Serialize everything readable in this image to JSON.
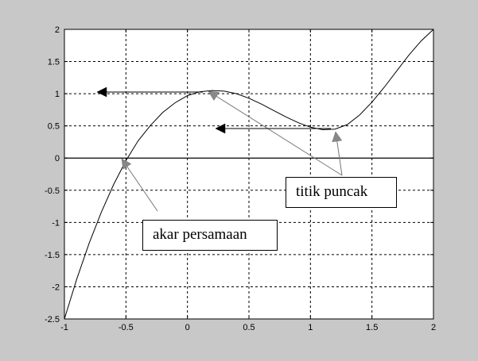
{
  "chart_data": {
    "type": "line",
    "title": "",
    "xlabel": "",
    "ylabel": "",
    "xlim": [
      -1,
      2
    ],
    "ylim": [
      -2.5,
      2
    ],
    "grid": true,
    "x_ticks": [
      -1,
      -0.5,
      0,
      0.5,
      1,
      1.5,
      2
    ],
    "x_tick_labels": [
      "-1",
      "-0.5",
      "0",
      "0.5",
      "1",
      "1.5",
      "2"
    ],
    "y_ticks": [
      2,
      1.5,
      1,
      0.5,
      0,
      -0.5,
      -1,
      -1.5,
      -2,
      -2.5
    ],
    "y_tick_labels": [
      "2",
      "1.5",
      "1",
      "0.5",
      "0",
      "-0.5",
      "-1",
      "-1.5",
      "-2",
      "-2.5"
    ],
    "series": [
      {
        "x": [
          -1,
          -0.9,
          -0.8,
          -0.7,
          -0.6,
          -0.5,
          -0.4,
          -0.3,
          -0.2,
          -0.1,
          0,
          0.1,
          0.2,
          0.3,
          0.4,
          0.5,
          0.6,
          0.7,
          0.8,
          0.9,
          1,
          1.1,
          1.2,
          1.3,
          1.4,
          1.5,
          1.6,
          1.7,
          1.8,
          1.9,
          2
        ],
        "y": [
          -2.5,
          -1.88,
          -1.33,
          -0.84,
          -0.41,
          -0.04,
          0.27,
          0.51,
          0.71,
          0.86,
          0.97,
          1.03,
          1.05,
          1.04,
          1.0,
          0.93,
          0.84,
          0.74,
          0.64,
          0.55,
          0.48,
          0.44,
          0.45,
          0.52,
          0.67,
          0.87,
          1.1,
          1.35,
          1.6,
          1.82,
          2.0
        ],
        "color": "#000000"
      }
    ],
    "reference_lines": [
      {
        "axis": "y",
        "value": 0,
        "color": "#000000"
      }
    ],
    "annotations": [
      {
        "text": "akar persamaan",
        "points_to": [
          -0.53,
          0
        ]
      },
      {
        "text": "titik puncak",
        "points_to": [
          [
            0.17,
            1.05
          ],
          [
            1.23,
            0.44
          ]
        ]
      }
    ],
    "colors": {
      "frame_background": "#c8c8c8",
      "plot_background": "#ffffff",
      "line": "#000000",
      "grid": "#000000"
    }
  }
}
